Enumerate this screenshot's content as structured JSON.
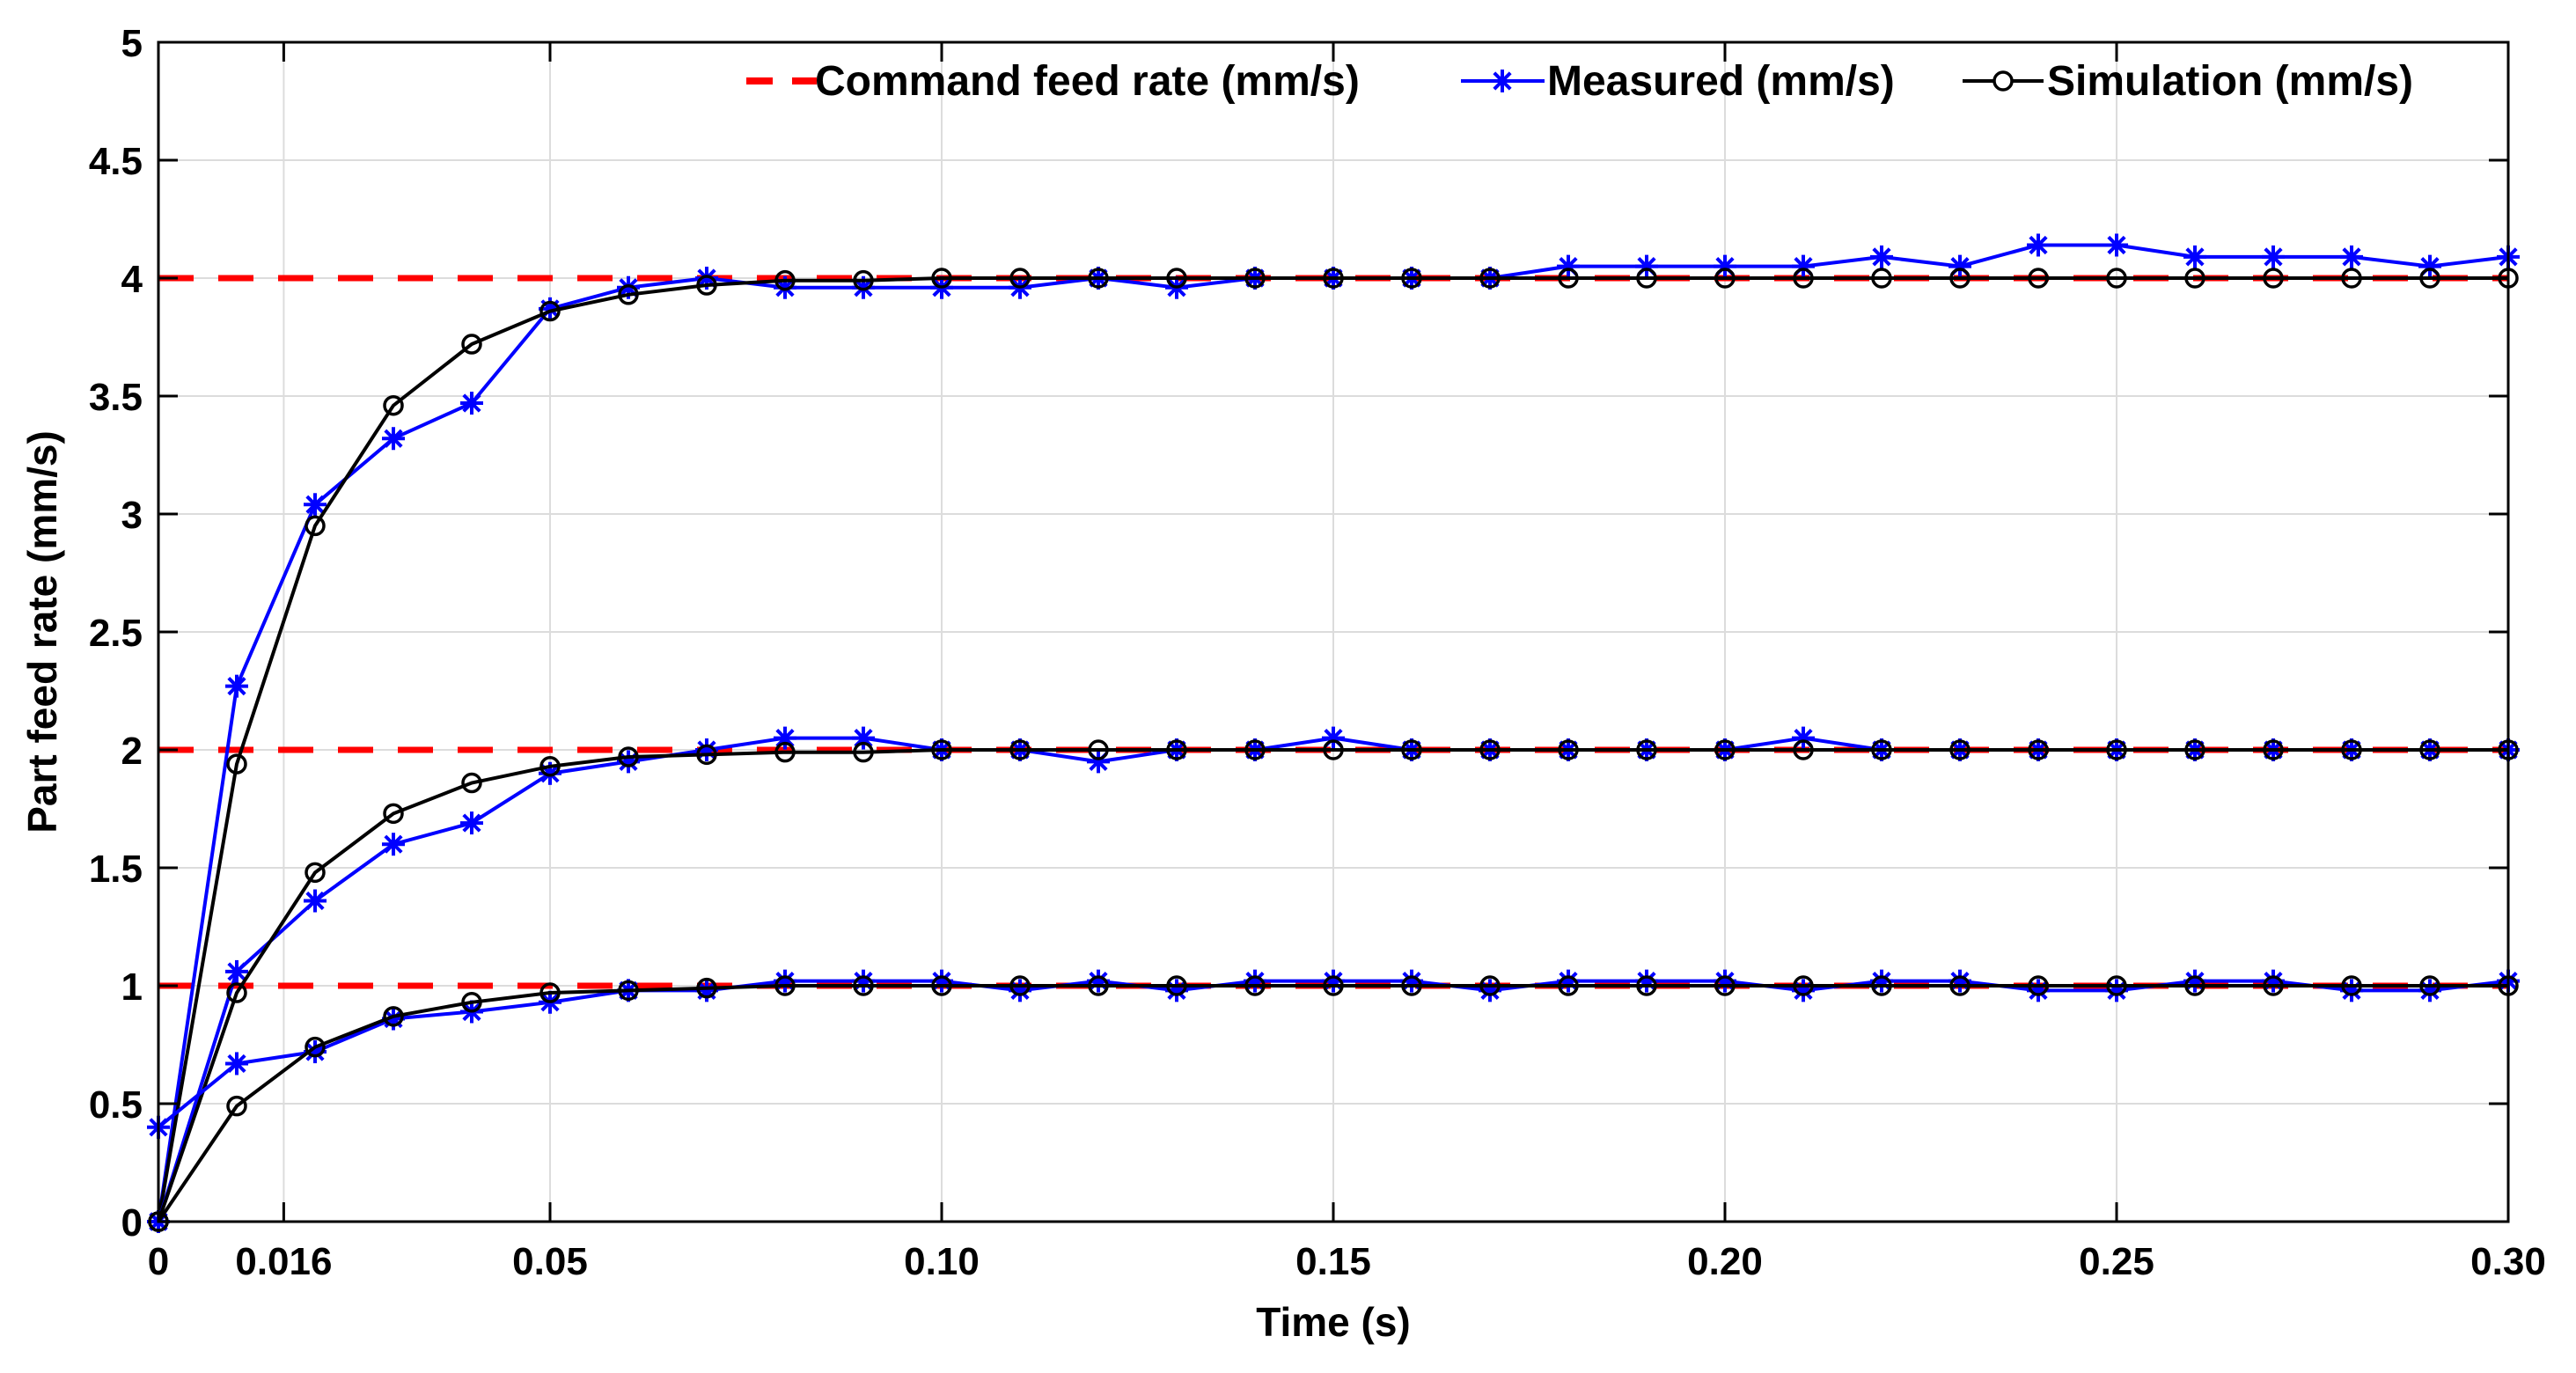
{
  "chart_data": {
    "type": "line",
    "title": "",
    "xlabel": "Time (s)",
    "ylabel": "Part feed rate (mm/s)",
    "xlim": [
      0,
      0.3
    ],
    "ylim": [
      0,
      5
    ],
    "grid": true,
    "legend_position": "top-right",
    "x_ticks": [
      {
        "value": 0,
        "label": "0"
      },
      {
        "value": 0.016,
        "label": "0.016"
      },
      {
        "value": 0.05,
        "label": "0.05"
      },
      {
        "value": 0.1,
        "label": "0.10"
      },
      {
        "value": 0.15,
        "label": "0.15"
      },
      {
        "value": 0.2,
        "label": "0.20"
      },
      {
        "value": 0.25,
        "label": "0.25"
      },
      {
        "value": 0.3,
        "label": "0.30"
      }
    ],
    "y_ticks": [
      {
        "value": 0,
        "label": "0"
      },
      {
        "value": 0.5,
        "label": "0.5"
      },
      {
        "value": 1,
        "label": "1"
      },
      {
        "value": 1.5,
        "label": "1.5"
      },
      {
        "value": 2,
        "label": "2"
      },
      {
        "value": 2.5,
        "label": "2.5"
      },
      {
        "value": 3,
        "label": "3"
      },
      {
        "value": 3.5,
        "label": "3.5"
      },
      {
        "value": 4,
        "label": "4"
      },
      {
        "value": 4.5,
        "label": "4.5"
      },
      {
        "value": 5,
        "label": "5"
      }
    ],
    "legend": [
      {
        "name": "Command feed rate (mm/s)",
        "color": "#ff0000",
        "style": "dashed",
        "marker": "none"
      },
      {
        "name": "Measured (mm/s)",
        "color": "#0000ff",
        "style": "solid",
        "marker": "asterisk"
      },
      {
        "name": "Simulation (mm/s)",
        "color": "#000000",
        "style": "solid",
        "marker": "circle"
      }
    ],
    "command_levels": [
      1,
      2,
      4
    ],
    "command_start_x": 0.0,
    "series": [
      {
        "name": "Measured 4 mm/s",
        "group": "Measured (mm/s)",
        "color": "#0000ff",
        "marker": "asterisk",
        "x": [
          0,
          0.01,
          0.02,
          0.03,
          0.04,
          0.05,
          0.06,
          0.07,
          0.08,
          0.09,
          0.1,
          0.11,
          0.12,
          0.13,
          0.14,
          0.15,
          0.16,
          0.17,
          0.18,
          0.19,
          0.2,
          0.21,
          0.22,
          0.23,
          0.24,
          0.25,
          0.26,
          0.27,
          0.28,
          0.29,
          0.3
        ],
        "values": [
          0,
          2.27,
          3.04,
          3.32,
          3.47,
          3.87,
          3.96,
          4.0,
          3.96,
          3.96,
          3.96,
          3.96,
          4.0,
          3.96,
          4.0,
          4.0,
          4.0,
          4.0,
          4.05,
          4.05,
          4.05,
          4.05,
          4.09,
          4.05,
          4.14,
          4.14,
          4.09,
          4.09,
          4.09,
          4.05,
          4.09
        ]
      },
      {
        "name": "Simulation 4 mm/s",
        "group": "Simulation (mm/s)",
        "color": "#000000",
        "marker": "circle",
        "x": [
          0,
          0.01,
          0.02,
          0.03,
          0.04,
          0.05,
          0.06,
          0.07,
          0.08,
          0.09,
          0.1,
          0.11,
          0.12,
          0.13,
          0.14,
          0.15,
          0.16,
          0.17,
          0.18,
          0.19,
          0.2,
          0.21,
          0.22,
          0.23,
          0.24,
          0.25,
          0.26,
          0.27,
          0.28,
          0.29,
          0.3
        ],
        "values": [
          0,
          1.94,
          2.95,
          3.46,
          3.72,
          3.86,
          3.93,
          3.97,
          3.99,
          3.99,
          4.0,
          4.0,
          4.0,
          4.0,
          4.0,
          4.0,
          4.0,
          4.0,
          4.0,
          4.0,
          4.0,
          4.0,
          4.0,
          4.0,
          4.0,
          4.0,
          4.0,
          4.0,
          4.0,
          4.0,
          4.0
        ]
      },
      {
        "name": "Measured 2 mm/s",
        "group": "Measured (mm/s)",
        "color": "#0000ff",
        "marker": "asterisk",
        "x": [
          0,
          0.01,
          0.02,
          0.03,
          0.04,
          0.05,
          0.06,
          0.07,
          0.08,
          0.09,
          0.1,
          0.11,
          0.12,
          0.13,
          0.14,
          0.15,
          0.16,
          0.17,
          0.18,
          0.19,
          0.2,
          0.21,
          0.22,
          0.23,
          0.24,
          0.25,
          0.26,
          0.27,
          0.28,
          0.29,
          0.3
        ],
        "values": [
          0,
          1.06,
          1.36,
          1.6,
          1.69,
          1.9,
          1.95,
          2.0,
          2.05,
          2.05,
          2.0,
          2.0,
          1.95,
          2.0,
          2.0,
          2.05,
          2.0,
          2.0,
          2.0,
          2.0,
          2.0,
          2.05,
          2.0,
          2.0,
          2.0,
          2.0,
          2.0,
          2.0,
          2.0,
          2.0,
          2.0
        ]
      },
      {
        "name": "Simulation 2 mm/s",
        "group": "Simulation (mm/s)",
        "color": "#000000",
        "marker": "circle",
        "x": [
          0,
          0.01,
          0.02,
          0.03,
          0.04,
          0.05,
          0.06,
          0.07,
          0.08,
          0.09,
          0.1,
          0.11,
          0.12,
          0.13,
          0.14,
          0.15,
          0.16,
          0.17,
          0.18,
          0.19,
          0.2,
          0.21,
          0.22,
          0.23,
          0.24,
          0.25,
          0.26,
          0.27,
          0.28,
          0.29,
          0.3
        ],
        "values": [
          0,
          0.97,
          1.48,
          1.73,
          1.86,
          1.93,
          1.97,
          1.98,
          1.99,
          1.99,
          2.0,
          2.0,
          2.0,
          2.0,
          2.0,
          2.0,
          2.0,
          2.0,
          2.0,
          2.0,
          2.0,
          2.0,
          2.0,
          2.0,
          2.0,
          2.0,
          2.0,
          2.0,
          2.0,
          2.0,
          2.0
        ]
      },
      {
        "name": "Measured 1 mm/s",
        "group": "Measured (mm/s)",
        "color": "#0000ff",
        "marker": "asterisk",
        "x": [
          0,
          0.01,
          0.02,
          0.03,
          0.04,
          0.05,
          0.06,
          0.07,
          0.08,
          0.09,
          0.1,
          0.11,
          0.12,
          0.13,
          0.14,
          0.15,
          0.16,
          0.17,
          0.18,
          0.19,
          0.2,
          0.21,
          0.22,
          0.23,
          0.24,
          0.25,
          0.26,
          0.27,
          0.28,
          0.29,
          0.3
        ],
        "values": [
          0.4,
          0.67,
          0.72,
          0.86,
          0.89,
          0.93,
          0.98,
          0.98,
          1.02,
          1.02,
          1.02,
          0.98,
          1.02,
          0.98,
          1.02,
          1.02,
          1.02,
          0.98,
          1.02,
          1.02,
          1.02,
          0.98,
          1.02,
          1.02,
          0.98,
          0.98,
          1.02,
          1.02,
          0.98,
          0.98,
          1.02
        ]
      },
      {
        "name": "Simulation 1 mm/s",
        "group": "Simulation (mm/s)",
        "color": "#000000",
        "marker": "circle",
        "x": [
          0,
          0.01,
          0.02,
          0.03,
          0.04,
          0.05,
          0.06,
          0.07,
          0.08,
          0.09,
          0.1,
          0.11,
          0.12,
          0.13,
          0.14,
          0.15,
          0.16,
          0.17,
          0.18,
          0.19,
          0.2,
          0.21,
          0.22,
          0.23,
          0.24,
          0.25,
          0.26,
          0.27,
          0.28,
          0.29,
          0.3
        ],
        "values": [
          0,
          0.49,
          0.74,
          0.87,
          0.93,
          0.97,
          0.98,
          0.99,
          1.0,
          1.0,
          1.0,
          1.0,
          1.0,
          1.0,
          1.0,
          1.0,
          1.0,
          1.0,
          1.0,
          1.0,
          1.0,
          1.0,
          1.0,
          1.0,
          1.0,
          1.0,
          1.0,
          1.0,
          1.0,
          1.0,
          1.0
        ]
      }
    ]
  }
}
